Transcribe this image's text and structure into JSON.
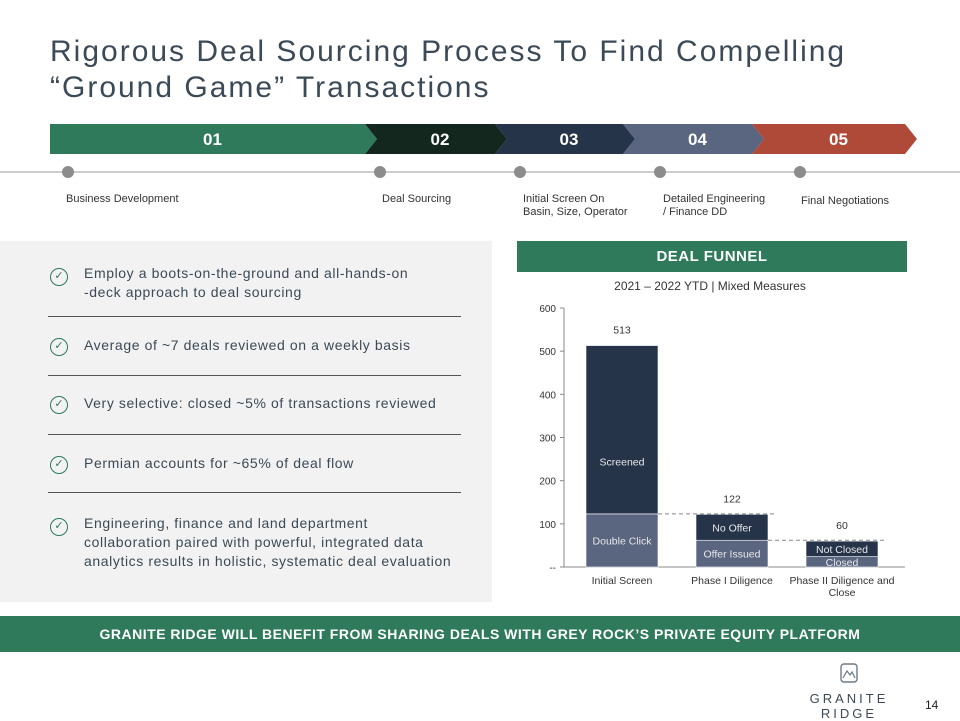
{
  "title": "Rigorous Deal Sourcing Process To Find Compelling “Ground Game” Transactions",
  "process": {
    "steps": [
      {
        "num": "01",
        "color": "#2e7a5a",
        "label": "Business Development"
      },
      {
        "num": "02",
        "color": "#13271f",
        "label": "Deal Sourcing"
      },
      {
        "num": "03",
        "color": "#26344a",
        "label": "Initial Screen On\nBasin, Size, Operator"
      },
      {
        "num": "04",
        "color": "#5a6580",
        "label": "Detailed Engineering\n/ Finance DD"
      },
      {
        "num": "05",
        "color": "#b04a38",
        "label": "Final Negotiations"
      }
    ]
  },
  "bullets": [
    "Employ a boots-on-the-ground and all-hands-on\n-deck approach to deal sourcing",
    "Average of ~7 deals reviewed on a weekly basis",
    "Very selective: closed ~5% of transactions reviewed",
    "Permian accounts for ~65% of deal flow",
    "Engineering, finance and land department\ncollaboration paired with powerful, integrated data\nanalytics results in holistic, systematic deal evaluation"
  ],
  "funnel_header": "DEAL FUNNEL",
  "chart_data": {
    "type": "bar",
    "title": "2021 – 2022 YTD | Mixed Measures",
    "categories": [
      "Initial Screen",
      "Phase I Diligence",
      "Phase II Diligence and Close"
    ],
    "series": [
      {
        "name": "Double Click",
        "values": [
          123,
          null,
          null
        ],
        "color": "#5a6580"
      },
      {
        "name": "Screened",
        "values": [
          390,
          null,
          null
        ],
        "color": "#26344a"
      },
      {
        "name": "Offer Issued",
        "values": [
          null,
          62,
          null
        ],
        "color": "#5a6580"
      },
      {
        "name": "No Offer",
        "values": [
          null,
          60,
          null
        ],
        "color": "#26344a"
      },
      {
        "name": "Closed",
        "values": [
          null,
          null,
          24
        ],
        "color": "#5a6580"
      },
      {
        "name": "Not Closed",
        "values": [
          null,
          null,
          36
        ],
        "color": "#26344a"
      }
    ],
    "totals": [
      "513",
      "122",
      "60"
    ],
    "yticks": [
      "--",
      "100",
      "200",
      "300",
      "400",
      "500",
      "600"
    ],
    "ylim": [
      0,
      600
    ]
  },
  "banner": "GRANITE RIDGE WILL BENEFIT FROM SHARING DEALS WITH GREY ROCK’S PRIVATE EQUITY PLATFORM",
  "logo_text": "GRANITE RIDGE",
  "page_number": "14"
}
